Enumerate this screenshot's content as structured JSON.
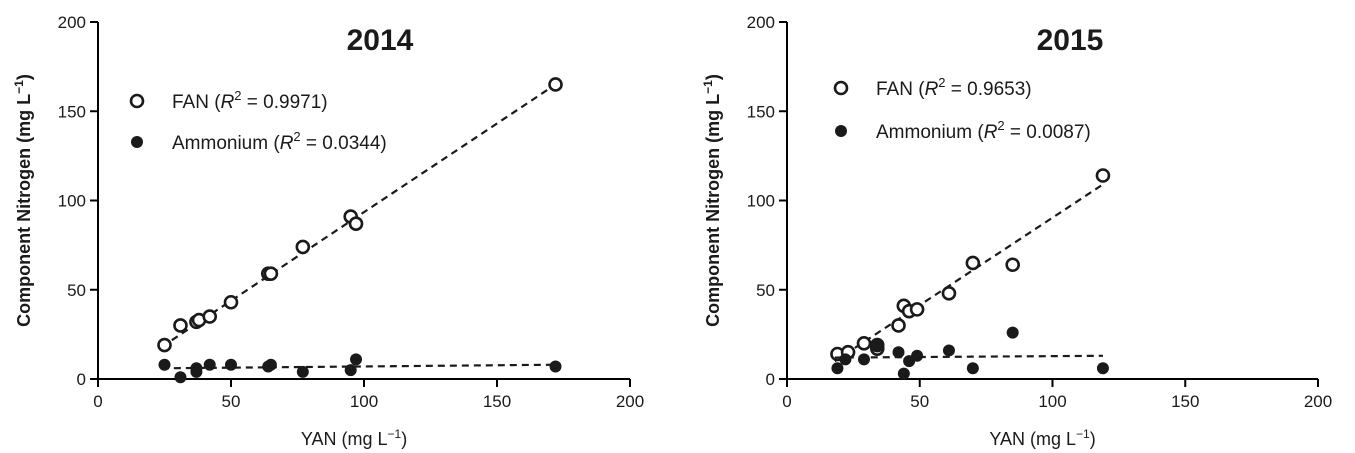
{
  "chart_data": [
    {
      "type": "scatter",
      "title": "2014",
      "xlabel": "YAN (mg L",
      "xlabel_sup": "−1",
      "xlabel_end": ")",
      "ylabel": "Component Nitrogen (mg L",
      "ylabel_sup": "−1",
      "ylabel_end": ")",
      "xlim": [
        0,
        200
      ],
      "ylim": [
        0,
        200
      ],
      "xticks": [
        0,
        50,
        100,
        150,
        200
      ],
      "yticks": [
        0,
        50,
        100,
        150,
        200
      ],
      "grid": false,
      "legend_position": "top-left",
      "series": [
        {
          "name": "FAN",
          "r2_label": "R",
          "r2_value": " = 0.9971)",
          "marker": "open-circle",
          "fit": [
            [
              24,
              18
            ],
            [
              172,
              165
            ]
          ],
          "points": [
            [
              25,
              19
            ],
            [
              31,
              30
            ],
            [
              37,
              32
            ],
            [
              38,
              33
            ],
            [
              42,
              35
            ],
            [
              50,
              43
            ],
            [
              64,
              59
            ],
            [
              65,
              59
            ],
            [
              77,
              74
            ],
            [
              95,
              91
            ],
            [
              97,
              87
            ],
            [
              172,
              165
            ]
          ]
        },
        {
          "name": "Ammonium",
          "r2_label": "R",
          "r2_value": " = 0.0344)",
          "marker": "filled-circle",
          "fit": [
            [
              24,
              6
            ],
            [
              172,
              8
            ]
          ],
          "points": [
            [
              25,
              8
            ],
            [
              31,
              1
            ],
            [
              37,
              4
            ],
            [
              37,
              6
            ],
            [
              42,
              8
            ],
            [
              50,
              8
            ],
            [
              64,
              7
            ],
            [
              65,
              8
            ],
            [
              77,
              4
            ],
            [
              95,
              5
            ],
            [
              97,
              11
            ],
            [
              172,
              7
            ]
          ]
        }
      ]
    },
    {
      "type": "scatter",
      "title": "2015",
      "xlabel": "YAN (mg L",
      "xlabel_sup": "−1",
      "xlabel_end": ")",
      "ylabel": "Component Nitrogen (mg L",
      "ylabel_sup": "−1",
      "ylabel_end": ")",
      "xlim": [
        0,
        200
      ],
      "ylim": [
        0,
        200
      ],
      "xticks": [
        0,
        50,
        100,
        150,
        200
      ],
      "yticks": [
        0,
        50,
        100,
        150,
        200
      ],
      "grid": false,
      "legend_position": "top-left",
      "series": [
        {
          "name": "FAN",
          "r2_label": "R",
          "r2_value": " = 0.9653)",
          "marker": "open-circle",
          "fit": [
            [
              18,
              10
            ],
            [
              119,
              109
            ]
          ],
          "points": [
            [
              19,
              14
            ],
            [
              23,
              15
            ],
            [
              29,
              20
            ],
            [
              34,
              17
            ],
            [
              34,
              19
            ],
            [
              42,
              30
            ],
            [
              44,
              41
            ],
            [
              46,
              38
            ],
            [
              49,
              39
            ],
            [
              61,
              48
            ],
            [
              70,
              65
            ],
            [
              85,
              64
            ],
            [
              119,
              114
            ]
          ]
        },
        {
          "name": "Ammonium",
          "r2_label": "R",
          "r2_value": " = 0.0087)",
          "marker": "filled-circle",
          "fit": [
            [
              18,
              12
            ],
            [
              119,
              13
            ]
          ],
          "points": [
            [
              19,
              6
            ],
            [
              22,
              11
            ],
            [
              29,
              11
            ],
            [
              34,
              19
            ],
            [
              42,
              15
            ],
            [
              44,
              3
            ],
            [
              46,
              10
            ],
            [
              49,
              13
            ],
            [
              61,
              16
            ],
            [
              70,
              6
            ],
            [
              85,
              26
            ],
            [
              119,
              6
            ]
          ]
        }
      ]
    }
  ]
}
